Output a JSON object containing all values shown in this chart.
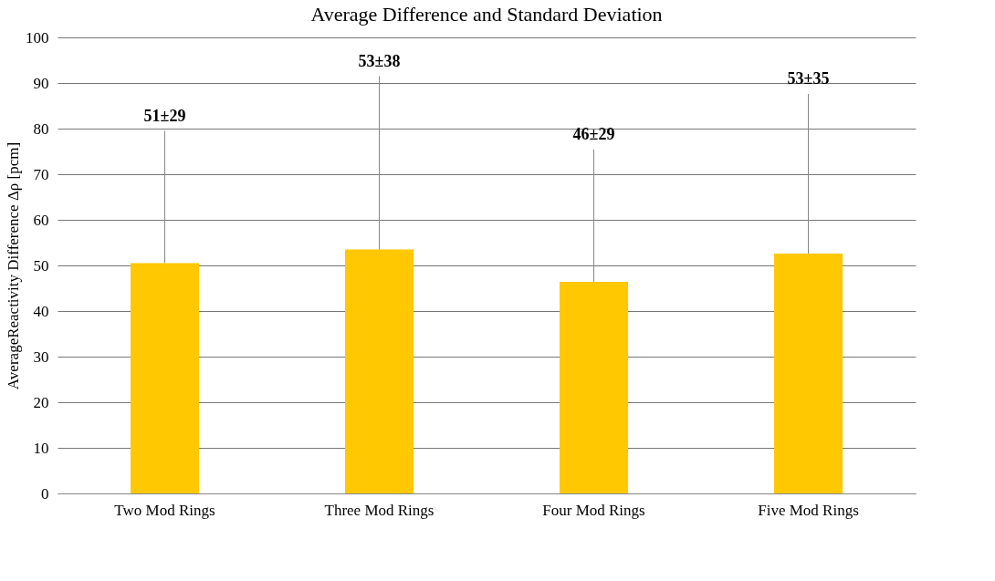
{
  "chart_data": {
    "type": "bar",
    "title": "Average Difference and Standard Deviation",
    "ylabel": "AverageReactivity Difference Δρ [pcm]",
    "categories": [
      "Two Mod Rings",
      "Three Mod Rings",
      "Four Mod Rings",
      "Five Mod Rings"
    ],
    "values": [
      50.5,
      53.5,
      46.4,
      52.6
    ],
    "errors": [
      [
        50.5,
        79.5
      ],
      [
        53.5,
        91.5
      ],
      [
        46.4,
        75.4
      ],
      [
        52.6,
        87.6
      ]
    ],
    "annotations": [
      {
        "text": "51±29",
        "x": "Two Mod Rings",
        "y": 79.5
      },
      {
        "text": "53±38",
        "x": "Three Mod Rings",
        "y": 91.5
      },
      {
        "text": "46±29",
        "x": "Four Mod Rings",
        "y": 75.4
      },
      {
        "text": "53±35",
        "x": "Five Mod Rings",
        "y": 87.6
      }
    ],
    "color": "#ffc800",
    "ylim": [
      0,
      100
    ],
    "yticks": [
      0,
      10,
      20,
      30,
      40,
      50,
      60,
      70,
      80,
      90,
      100
    ],
    "grid": "y"
  }
}
